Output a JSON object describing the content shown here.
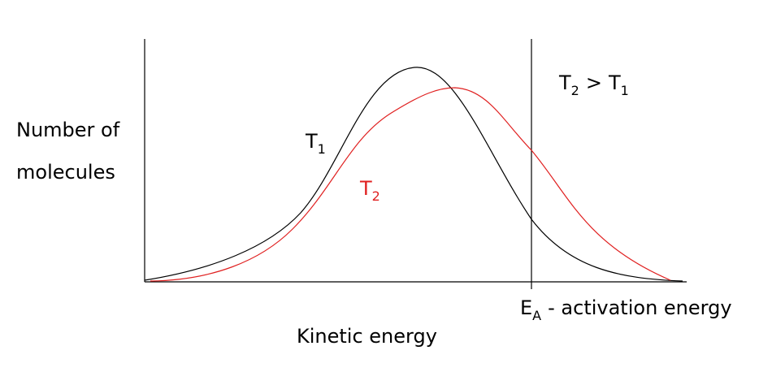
{
  "y_axis_label": [
    "Number of",
    "molecules"
  ],
  "x_axis_label": "Kinetic energy",
  "curves": [
    {
      "label": "T",
      "subscript": "1"
    },
    {
      "label": "T",
      "subscript": "2"
    }
  ],
  "comparison": {
    "left": "T",
    "left_sub": "2",
    "operator": ">",
    "right": "T",
    "right_sub": "1"
  },
  "activation": {
    "symbol": "E",
    "sub": "A",
    "text": "- activation energy"
  }
}
